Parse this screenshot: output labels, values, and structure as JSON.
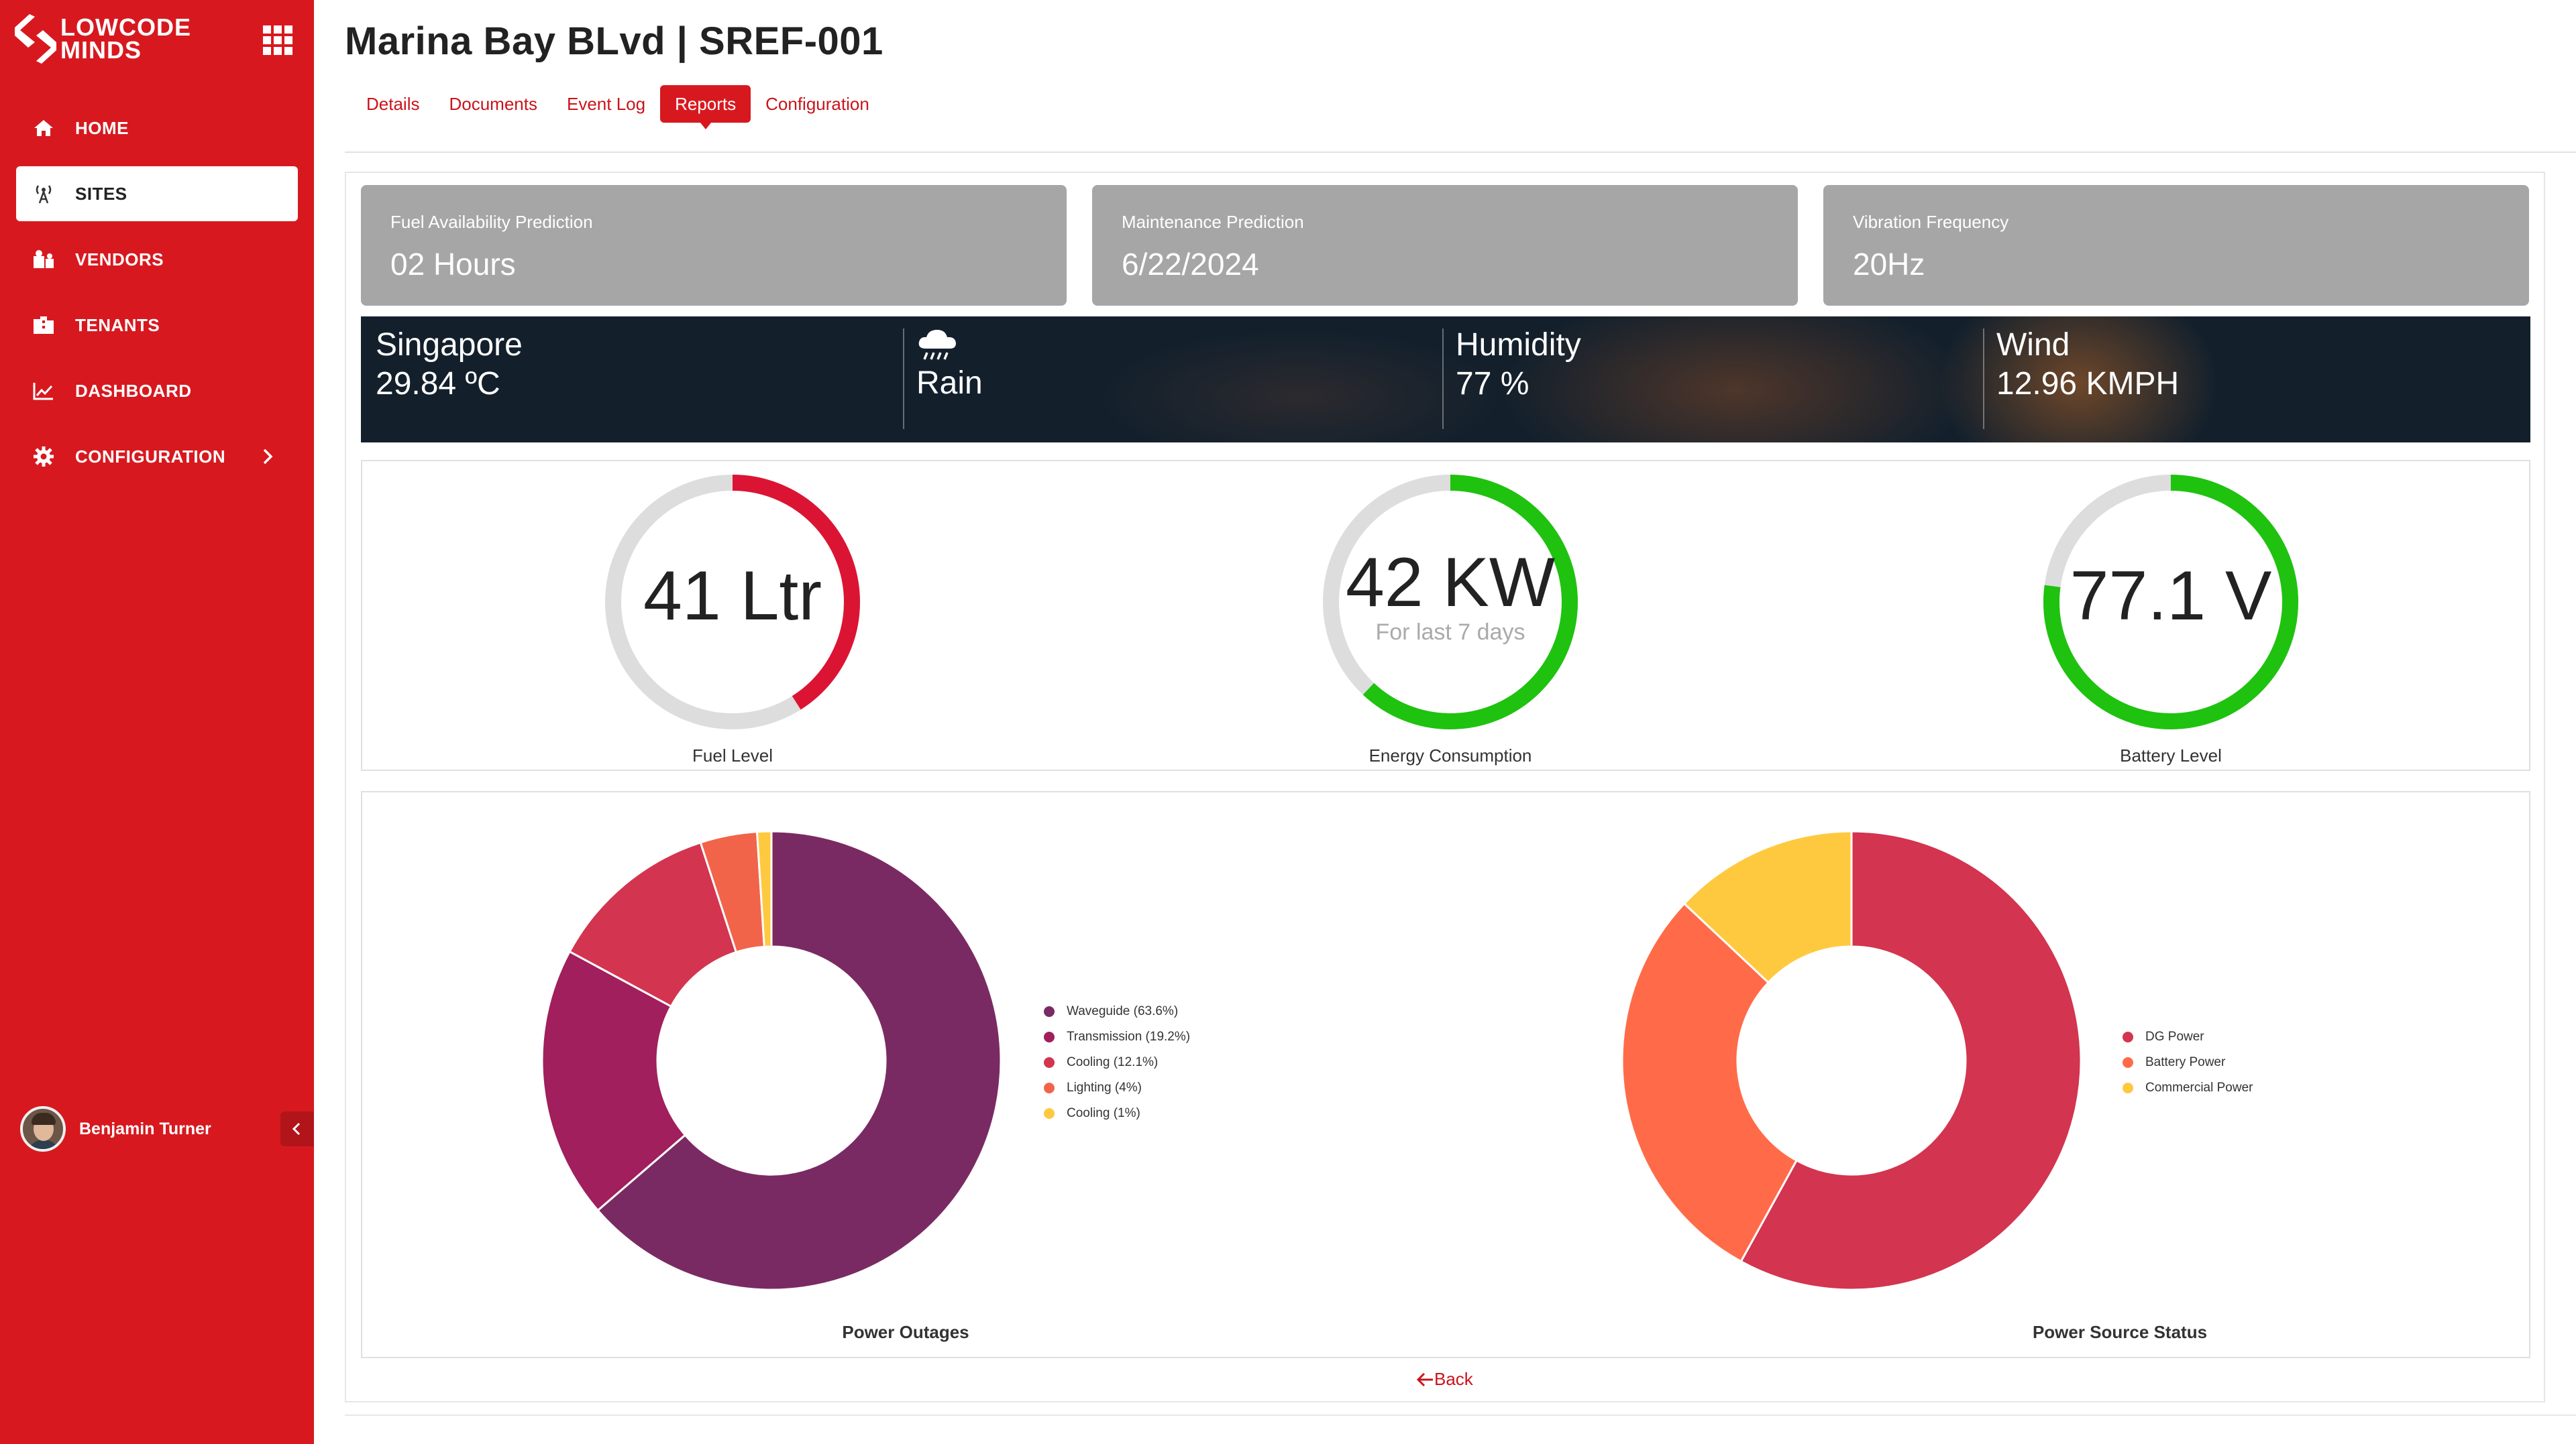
{
  "brand": {
    "line1": "LOWCODE",
    "line2": "MINDS",
    "primary_color": "#d7191f"
  },
  "sidebar": {
    "items": [
      {
        "label": "HOME",
        "icon": "home-icon"
      },
      {
        "label": "SITES",
        "icon": "antenna-icon",
        "active": true
      },
      {
        "label": "VENDORS",
        "icon": "vendors-icon"
      },
      {
        "label": "TENANTS",
        "icon": "building-icon"
      },
      {
        "label": "DASHBOARD",
        "icon": "chart-line-icon"
      },
      {
        "label": "CONFIGURATION",
        "icon": "gear-icon",
        "has_children": true
      }
    ],
    "user": {
      "name": "Benjamin Turner"
    }
  },
  "header": {
    "title": "Marina Bay BLvd | SREF-001",
    "tabs": [
      {
        "label": "Details"
      },
      {
        "label": "Documents"
      },
      {
        "label": "Event Log"
      },
      {
        "label": "Reports",
        "active": true
      },
      {
        "label": "Configuration"
      }
    ]
  },
  "stats": [
    {
      "label": "Fuel Availability Prediction",
      "value": "02 Hours"
    },
    {
      "label": "Maintenance Prediction",
      "value": "6/22/2024"
    },
    {
      "label": "Vibration Frequency",
      "value": "20Hz"
    }
  ],
  "weather": {
    "city": "Singapore",
    "temperature": "29.84 ºC",
    "condition": "Rain",
    "condition_icon": "cloud-rain-icon",
    "humidity_label": "Humidity",
    "humidity": "77 %",
    "wind_label": "Wind",
    "wind": "12.96 KMPH"
  },
  "gauges": [
    {
      "value_text": "41 Ltr",
      "sub": "",
      "label": "Fuel Level",
      "fraction": 0.41,
      "color": "#dc1433"
    },
    {
      "value_text": "42 KW",
      "sub": "For last 7 days",
      "label": "Energy Consumption",
      "fraction": 0.62,
      "color": "#1fc20f"
    },
    {
      "value_text": "77.1 V",
      "sub": "",
      "label": "Battery Level",
      "fraction": 0.771,
      "color": "#1fc20f"
    }
  ],
  "chart_data": [
    {
      "type": "pie",
      "title": "Power Outages",
      "categories": [
        "Waveguide (63.6%)",
        "Transmission (19.2%)",
        "Cooling (12.1%)",
        "Lighting (4%)",
        "Cooling (1%)"
      ],
      "values": [
        63.6,
        19.2,
        12.1,
        4,
        1
      ],
      "colors": [
        "#7a2a62",
        "#a01f5c",
        "#d3344f",
        "#f2644a",
        "#ffc93f"
      ],
      "legend_position": "right"
    },
    {
      "type": "pie",
      "title": "Power Source Status",
      "categories": [
        "DG Power",
        "Battery Power",
        "Commercial Power"
      ],
      "values": [
        58,
        29,
        13
      ],
      "colors": [
        "#d3344f",
        "#ff6b48",
        "#ffc93f"
      ],
      "legend_position": "right"
    }
  ],
  "footer": {
    "back_label": "Back"
  }
}
